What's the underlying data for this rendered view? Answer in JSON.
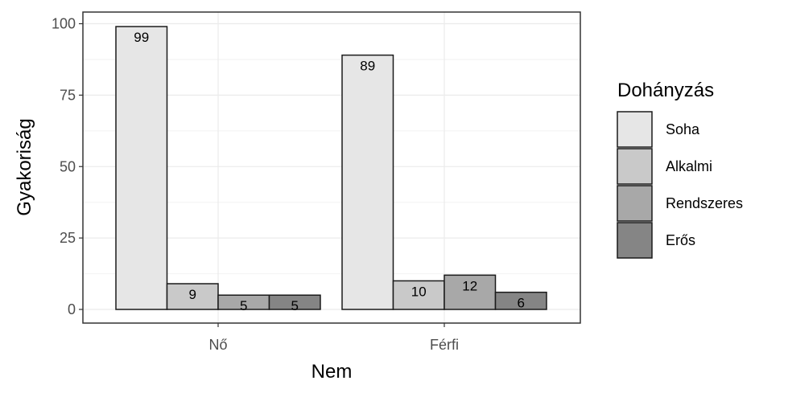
{
  "chart_data": {
    "type": "bar",
    "xlabel": "Nem",
    "ylabel": "Gyakoriság",
    "categories": [
      "Nő",
      "Férfi"
    ],
    "ylim": [
      0,
      100
    ],
    "yticks": [
      "0",
      "25",
      "50",
      "75",
      "100"
    ],
    "grid": true,
    "legend": {
      "title": "Dohányzás",
      "position": "right"
    },
    "series": [
      {
        "name": "Soha",
        "values": [
          99,
          89
        ],
        "color": "#e6e6e6"
      },
      {
        "name": "Alkalmi",
        "values": [
          9,
          10
        ],
        "color": "#c9c9c9"
      },
      {
        "name": "Rendszeres",
        "values": [
          5,
          12
        ],
        "color": "#a8a8a8"
      },
      {
        "name": "Erős",
        "values": [
          5,
          6
        ],
        "color": "#858585"
      }
    ]
  }
}
